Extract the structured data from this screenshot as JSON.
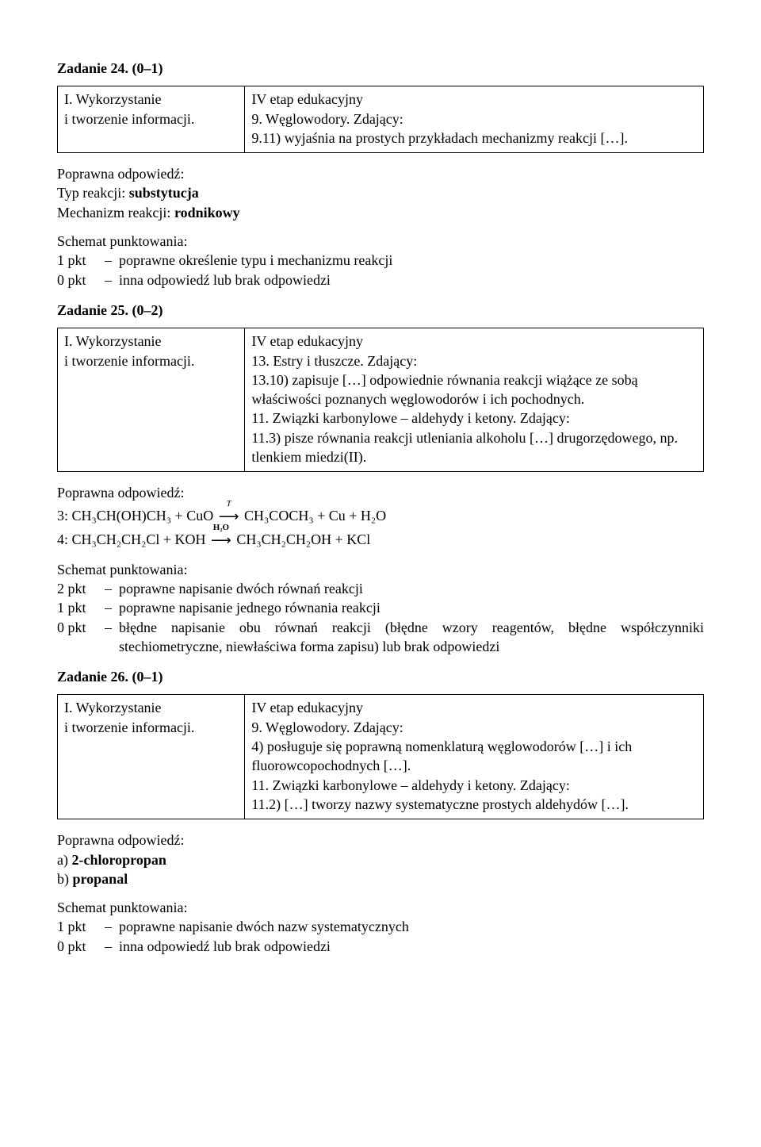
{
  "task24": {
    "heading": "Zadanie 24. (0–1)",
    "left": "I. Wykorzystanie\ni tworzenie informacji.",
    "right_l1": "IV etap edukacyjny",
    "right_l2": "9. Węglowodory. Zdający:",
    "right_l3": "9.11) wyjaśnia na prostych przykładach mechanizmy reakcji […].",
    "answer_label": "Poprawna odpowiedź:",
    "answer_l1a": "Typ reakcji: ",
    "answer_l1b": "substytucja",
    "answer_l2a": "Mechanizm reakcji: ",
    "answer_l2b": "rodnikowy",
    "scoring_heading": "Schemat punktowania:",
    "p1": "1 pkt",
    "p1_desc": "poprawne określenie typu i mechanizmu reakcji",
    "p0": "0 pkt",
    "p0_desc": "inna odpowiedź lub brak odpowiedzi"
  },
  "task25": {
    "heading": "Zadanie 25. (0–2)",
    "left": "I. Wykorzystanie\ni tworzenie informacji.",
    "right_l1": "IV etap edukacyjny",
    "right_l2": "13. Estry i tłuszcze. Zdający:",
    "right_l3": "13.10) zapisuje […] odpowiednie równania reakcji wiążące ze sobą właściwości poznanych węglowodorów i ich pochodnych.",
    "right_l4": "11. Związki karbonylowe – aldehydy i ketony. Zdający:",
    "right_l5": "11.3) pisze równania reakcji utleniania alkoholu […] drugorzędowego, np. tlenkiem miedzi(II).",
    "answer_label": "Poprawna odpowiedź:",
    "eq3_lhs": "3: CH₃CH(OH)CH₃ + CuO",
    "eq3_over": "T",
    "eq3_rhs": "CH₃COCH₃ + Cu + H₂O",
    "eq4_lhs": "4: CH₃CH₂CH₂Cl + KOH",
    "eq4_over": "H₂O",
    "eq4_rhs": "CH₃CH₂CH₂OH + KCl",
    "scoring_heading": "Schemat punktowania:",
    "p2": "2 pkt",
    "p2_desc": "poprawne napisanie dwóch równań reakcji",
    "p1": "1 pkt",
    "p1_desc": "poprawne napisanie jednego równania reakcji",
    "p0": "0 pkt",
    "p0_desc": "błędne napisanie obu równań reakcji (błędne wzory reagentów, błędne współczynniki stechiometryczne, niewłaściwa forma zapisu) lub brak odpowiedzi"
  },
  "task26": {
    "heading": "Zadanie 26. (0–1)",
    "left": "I. Wykorzystanie\ni tworzenie informacji.",
    "right_l1": "IV etap edukacyjny",
    "right_l2": "9. Węglowodory. Zdający:",
    "right_l3": "4) posługuje się poprawną nomenklaturą węglowodorów […] i ich fluorowcopochodnych […].",
    "right_l4": "11. Związki karbonylowe – aldehydy i ketony. Zdający:",
    "right_l5": "11.2) […] tworzy nazwy systematyczne prostych aldehydów […].",
    "answer_label": "Poprawna odpowiedź:",
    "answer_a_pre": "a) ",
    "answer_a": "2-chloropropan",
    "answer_b_pre": "b) ",
    "answer_b": "propanal",
    "scoring_heading": "Schemat punktowania:",
    "p1": "1 pkt",
    "p1_desc": "poprawne napisanie dwóch nazw systematycznych",
    "p0": "0 pkt",
    "p0_desc": "inna odpowiedź lub brak odpowiedzi"
  },
  "dash": "–",
  "arrow": "⟶"
}
